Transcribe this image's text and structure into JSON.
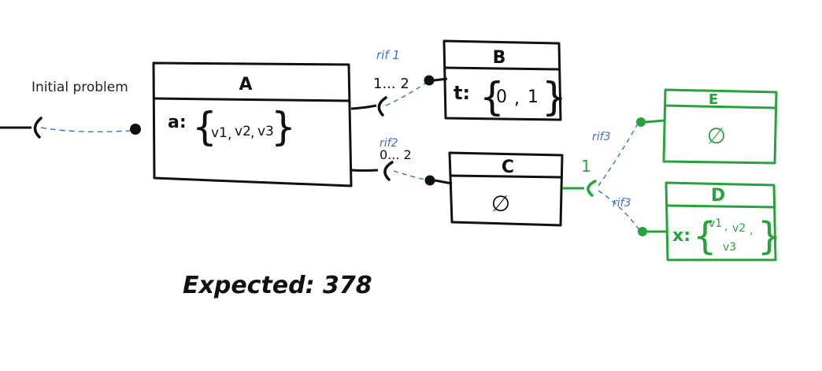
{
  "initial_label": "Initial problem",
  "expected": "Expected: 378",
  "colors": {
    "ink": "#111111",
    "link": "#3a6fd8",
    "green": "#27a33b"
  },
  "boxes": {
    "A": {
      "title": "A",
      "attr_name": "a:",
      "values": [
        "v1",
        "v2",
        "v3"
      ]
    },
    "B": {
      "title": "B",
      "attr_name": "t:",
      "values": [
        "0",
        "1"
      ]
    },
    "C": {
      "title": "C",
      "body": "∅"
    },
    "E": {
      "title": "E",
      "body": "∅"
    },
    "D": {
      "title": "D",
      "attr_name": "x:",
      "values": [
        "v1",
        "v2",
        "v3"
      ]
    }
  },
  "links": {
    "rif1": {
      "label": "rif 1",
      "multiplicity": "1... 2"
    },
    "rif2": {
      "label": "rif2",
      "multiplicity": "0... 2"
    },
    "rif3_top": {
      "label": "rif3"
    },
    "rif3_bottom": {
      "label": "rif3"
    },
    "c_multiplicity": "1"
  }
}
